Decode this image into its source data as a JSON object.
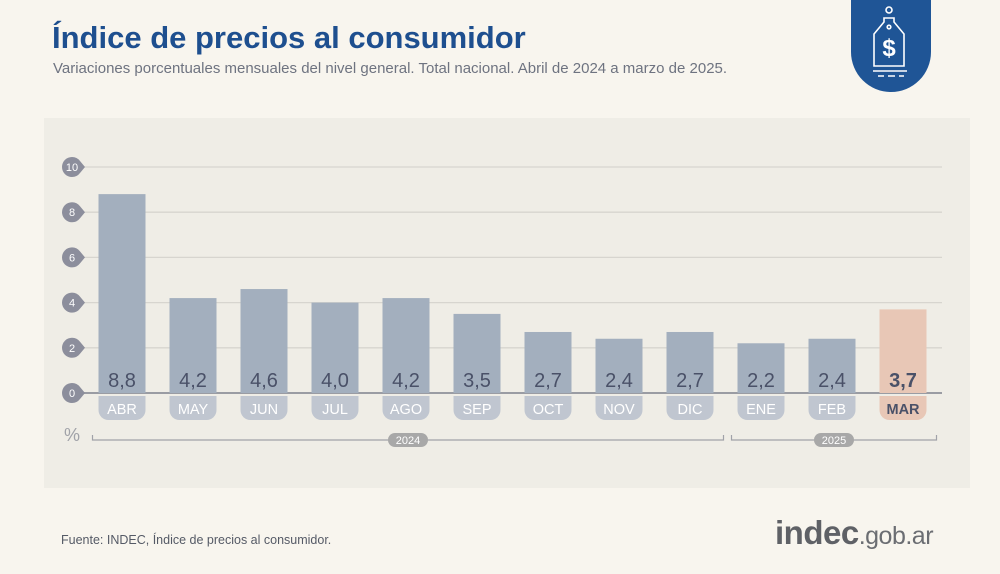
{
  "header": {
    "title": "Índice de precios al consumidor",
    "subtitle": "Variaciones porcentuales mensuales del nivel general. Total nacional. Abril de 2024 a marzo de 2025."
  },
  "badge_icon": "price-tag-dollar-icon",
  "footer": {
    "source": "Fuente: INDEC, Índice de precios al consumidor.",
    "logo_main": "indec",
    "logo_suffix": ".gob.ar"
  },
  "colors": {
    "title": "#1e4f8f",
    "bar": "#a3afbe",
    "highlight": "#e8c7b6",
    "badge": "#1f5596"
  },
  "chart_data": {
    "type": "bar",
    "categories": [
      "ABR",
      "MAY",
      "JUN",
      "JUL",
      "AGO",
      "SEP",
      "OCT",
      "NOV",
      "DIC",
      "ENE",
      "FEB",
      "MAR"
    ],
    "values": [
      8.8,
      4.2,
      4.6,
      4.0,
      4.2,
      3.5,
      2.7,
      2.4,
      2.7,
      2.2,
      2.4,
      3.7
    ],
    "value_labels": [
      "8,8",
      "4,2",
      "4,6",
      "4,0",
      "4,2",
      "3,5",
      "2,7",
      "2,4",
      "2,7",
      "2,2",
      "2,4",
      "3,7"
    ],
    "highlight": "MAR",
    "ylabel": "%",
    "ylim": [
      0,
      10
    ],
    "yticks": [
      0,
      2,
      4,
      6,
      8,
      10
    ],
    "grid": true,
    "groups": [
      {
        "label": "2024",
        "from": 0,
        "to": 8
      },
      {
        "label": "2025",
        "from": 9,
        "to": 11
      }
    ]
  }
}
